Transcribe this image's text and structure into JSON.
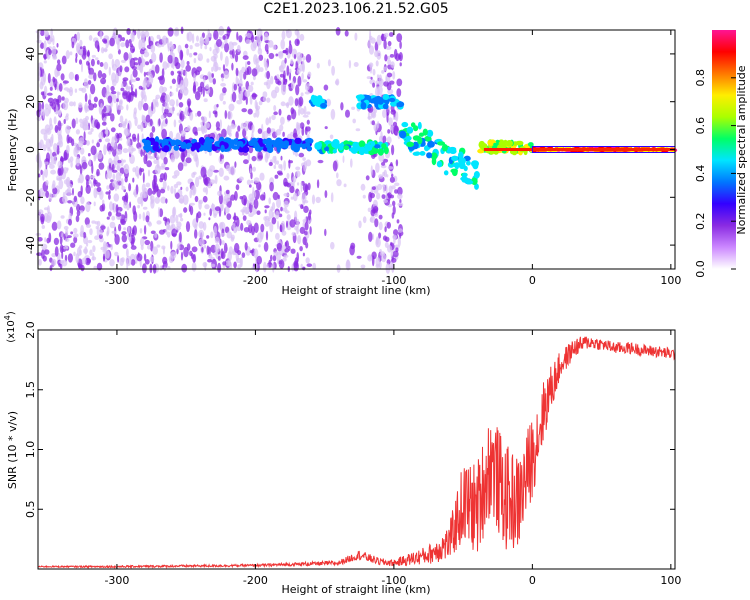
{
  "figure_title": "C2E1.2023.106.21.52.G05",
  "colors": {
    "snr_line": "#ee3333",
    "spectrum_strong": "#8a2be2",
    "spectrum_faint": "#d9c2f5",
    "frame": "#000000"
  },
  "chart_data": [
    {
      "type": "heatmap",
      "title": "",
      "xlabel": "Height of straight line (km)",
      "ylabel": "Frequency (Hz)",
      "xlim": [
        -357,
        103
      ],
      "ylim": [
        -50,
        50
      ],
      "xticks": [
        -300,
        -200,
        -100,
        0,
        100
      ],
      "yticks": [
        -40,
        -20,
        0,
        20,
        40
      ],
      "colorbar": {
        "label": "Normalized spectral amplitude",
        "range": [
          0,
          1
        ],
        "ticks": [
          "0.0",
          "0.2",
          "0.4",
          "0.6",
          "0.8"
        ],
        "colormap": [
          "#ffffff",
          "#cc88ff",
          "#8a2be2",
          "#3300ff",
          "#0077ff",
          "#00e5ff",
          "#00ff66",
          "#aaff00",
          "#ffee00",
          "#ff7700",
          "#ff0000",
          "#ff1493"
        ]
      },
      "features": [
        {
          "x_range": [
            -357,
            -100
          ],
          "freq_center": 0,
          "amplitude": 0.25,
          "description_type": "broadband"
        },
        {
          "x_range": [
            -160,
            -150
          ],
          "freq_center": 20,
          "amplitude": 0.5
        },
        {
          "x_range": [
            -125,
            -95
          ],
          "freq_center": 20,
          "amplitude": 0.5
        },
        {
          "x_range": [
            -280,
            -160
          ],
          "freq_center": 2,
          "amplitude": 0.4
        },
        {
          "x_range": [
            -155,
            -105
          ],
          "freq_center": 1,
          "amplitude": 0.55
        },
        {
          "x_range": [
            -95,
            -40
          ],
          "freq_center": -8,
          "amplitude": 0.55
        },
        {
          "x_range": [
            -38,
            0
          ],
          "freq_center": 1,
          "amplitude": 0.75
        },
        {
          "x_range": [
            0,
            103
          ],
          "freq_center": 0,
          "amplitude": 1.0
        }
      ]
    },
    {
      "type": "line",
      "title": "",
      "xlabel": "Height of straight line (km)",
      "ylabel": "SNR (10 * v/v)",
      "scale_label": "(x10^4)",
      "xlim": [
        -357,
        103
      ],
      "ylim": [
        0,
        2.0
      ],
      "xticks": [
        -300,
        -200,
        -100,
        0,
        100
      ],
      "yticks": [
        "0.5",
        "1.0",
        "1.5",
        "2.0"
      ],
      "series": [
        {
          "x": [
            -357,
            -300,
            -200,
            -140,
            -125,
            -110,
            -100,
            -75,
            -60,
            -50,
            -40,
            -30,
            -20,
            -10,
            0,
            10,
            20,
            30,
            40,
            50,
            60,
            70,
            80,
            90,
            100,
            103
          ],
          "y": [
            0.02,
            0.02,
            0.03,
            0.05,
            0.12,
            0.06,
            0.05,
            0.12,
            0.22,
            0.55,
            0.5,
            0.9,
            0.6,
            0.55,
            0.95,
            1.4,
            1.7,
            1.85,
            1.9,
            1.88,
            1.85,
            1.85,
            1.83,
            1.82,
            1.8,
            1.8
          ],
          "noise": [
            0.005,
            0.008,
            0.01,
            0.02,
            0.04,
            0.03,
            0.03,
            0.08,
            0.15,
            0.35,
            0.4,
            0.45,
            0.45,
            0.4,
            0.35,
            0.25,
            0.12,
            0.08,
            0.06,
            0.05,
            0.05,
            0.05,
            0.05,
            0.05,
            0.05,
            0.05
          ]
        }
      ]
    }
  ]
}
